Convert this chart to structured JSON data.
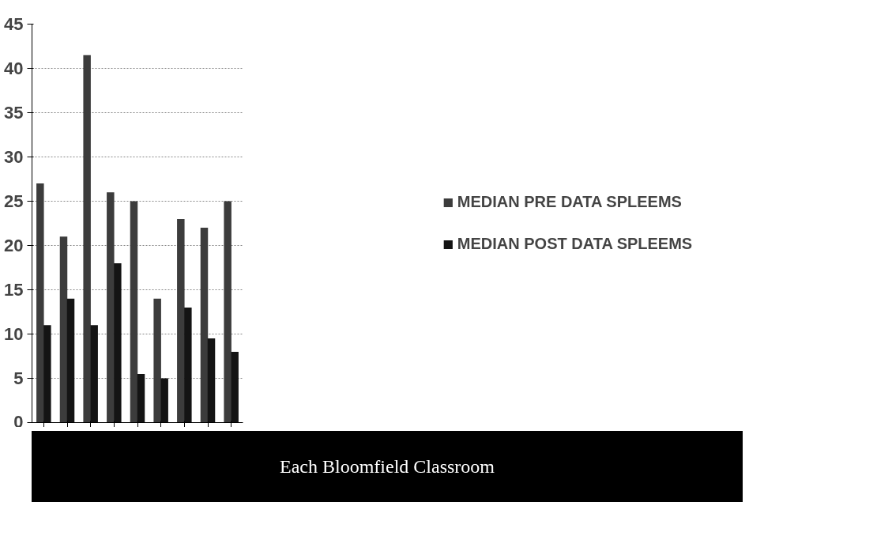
{
  "chart_data": {
    "type": "bar",
    "xlabel": "Each Bloomfield Classroom",
    "categories": [
      null,
      null,
      null,
      null,
      null,
      null,
      null,
      null,
      null
    ],
    "series": [
      {
        "name": "MEDIAN PRE DATA SPLEEMS",
        "color": "#3c3c3c",
        "values": [
          27,
          21,
          41.5,
          26,
          25,
          14,
          23,
          22,
          25
        ]
      },
      {
        "name": "MEDIAN POST DATA SPLEEMS",
        "color": "#141414",
        "values": [
          11,
          14,
          11,
          18,
          5.5,
          5,
          13,
          9.5,
          8
        ]
      }
    ],
    "ylim": [
      0,
      45
    ],
    "yticks": [
      0,
      5,
      10,
      15,
      20,
      25,
      30,
      35,
      40,
      45
    ],
    "grid": "y",
    "legend": "right",
    "tick_labels": "y"
  }
}
